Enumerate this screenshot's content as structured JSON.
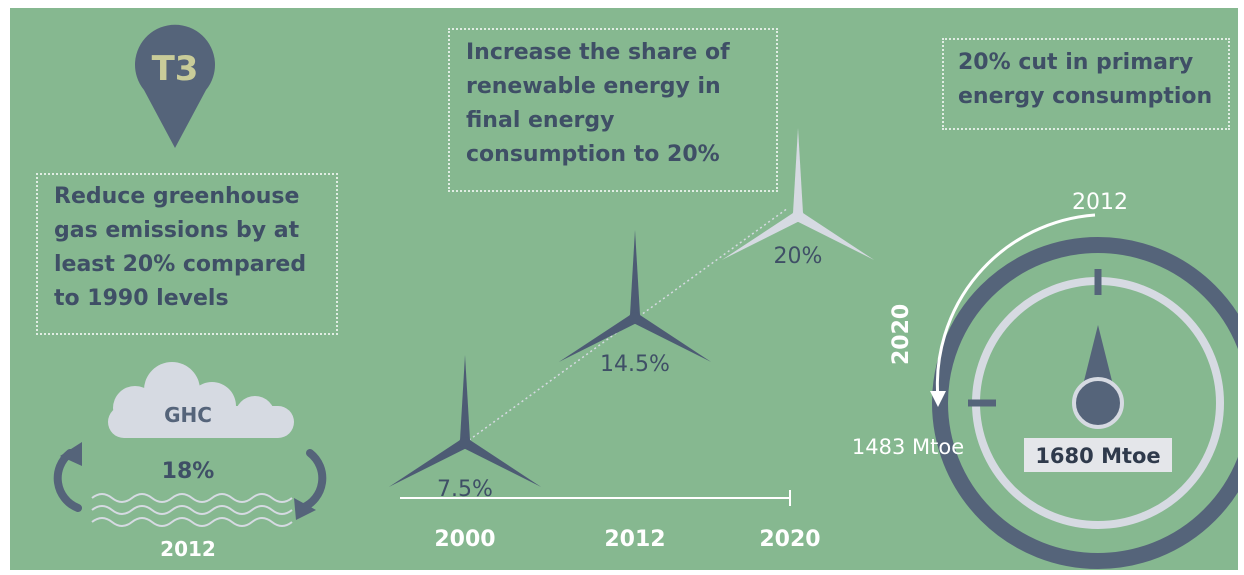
{
  "badge": {
    "label": "T3",
    "icon": "location-pin-icon"
  },
  "targets": {
    "ghg": {
      "lines": [
        "Reduce greenhouse",
        "gas emissions by at",
        "least 20% compared",
        "to 1990 levels"
      ],
      "cloud_label": "GHC",
      "value": "18%",
      "year": "2012"
    },
    "renewables": {
      "lines": [
        "Increase the share of",
        "renewable energy in",
        "final energy",
        "consumption to 20%"
      ],
      "axis_labels": [
        "2000",
        "2012",
        "2020"
      ],
      "points": [
        {
          "year": "2000",
          "label": "7.5%"
        },
        {
          "year": "2012",
          "label": "14.5%"
        },
        {
          "year": "2020",
          "label": "20%"
        }
      ]
    },
    "efficiency": {
      "lines": [
        "20% cut in primary",
        "energy consumption"
      ],
      "year_top": "2012",
      "year_side": "2020",
      "target_value": "1483 Mtoe",
      "current_value": "1680 Mtoe"
    }
  },
  "colors": {
    "background": "#86b890",
    "dark": "#4d5b74",
    "light": "#d6dae2",
    "text": "#3f4f66"
  }
}
